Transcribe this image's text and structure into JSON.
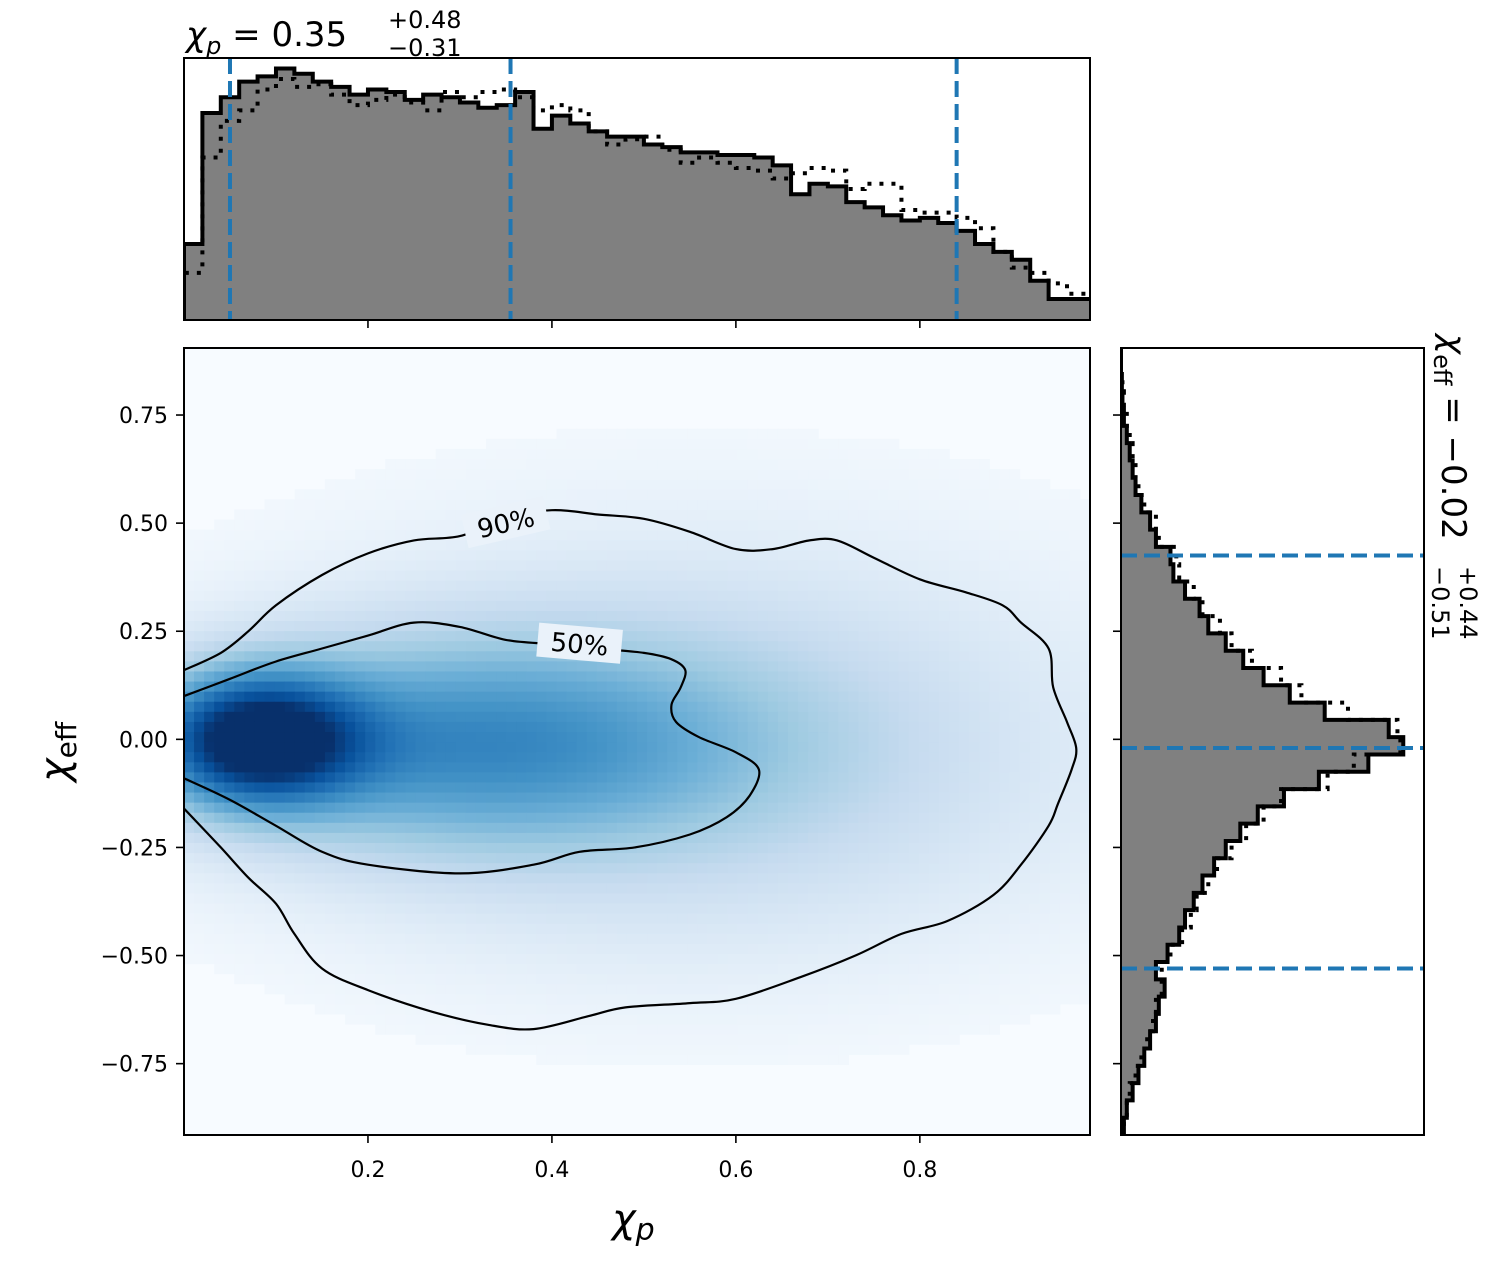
{
  "chart_data": [
    {
      "type": "heatmap",
      "panel": "joint",
      "xlabel": "χp",
      "ylabel": "χeff",
      "xlim": [
        0.0,
        0.985
      ],
      "ylim": [
        -0.915,
        0.905
      ],
      "xticks": [
        "0.2",
        "0.4",
        "0.6",
        "0.8"
      ],
      "xtick_values": [
        0.2,
        0.4,
        0.6,
        0.8
      ],
      "yticks": [
        "0.75",
        "0.50",
        "0.25",
        "0.00",
        "−0.25",
        "−0.50",
        "−0.75"
      ],
      "ytick_values": [
        0.75,
        0.5,
        0.25,
        0.0,
        -0.25,
        -0.5,
        -0.75
      ],
      "density_peak": {
        "x": 0.08,
        "y": 0.0
      },
      "colormap": [
        "#f7fbff",
        "#deebf7",
        "#c6dbef",
        "#9ecae1",
        "#6baed6",
        "#4292c6",
        "#2171b5",
        "#08519c",
        "#08306b"
      ],
      "contours": [
        {
          "label": "50%",
          "points": [
            [
              0.0,
              0.1
            ],
            [
              0.05,
              0.14
            ],
            [
              0.1,
              0.18
            ],
            [
              0.15,
              0.21
            ],
            [
              0.2,
              0.24
            ],
            [
              0.25,
              0.27
            ],
            [
              0.3,
              0.26
            ],
            [
              0.35,
              0.23
            ],
            [
              0.4,
              0.22
            ],
            [
              0.45,
              0.21
            ],
            [
              0.5,
              0.2
            ],
            [
              0.53,
              0.185
            ],
            [
              0.545,
              0.16
            ],
            [
              0.54,
              0.12
            ],
            [
              0.53,
              0.08
            ],
            [
              0.535,
              0.04
            ],
            [
              0.56,
              0.005
            ],
            [
              0.6,
              -0.03
            ],
            [
              0.625,
              -0.07
            ],
            [
              0.615,
              -0.13
            ],
            [
              0.59,
              -0.18
            ],
            [
              0.55,
              -0.22
            ],
            [
              0.49,
              -0.25
            ],
            [
              0.43,
              -0.26
            ],
            [
              0.38,
              -0.29
            ],
            [
              0.3,
              -0.31
            ],
            [
              0.2,
              -0.29
            ],
            [
              0.15,
              -0.26
            ],
            [
              0.1,
              -0.2
            ],
            [
              0.05,
              -0.14
            ],
            [
              0.0,
              -0.09
            ]
          ]
        },
        {
          "label": "90%",
          "points": [
            [
              0.0,
              0.16
            ],
            [
              0.04,
              0.2
            ],
            [
              0.07,
              0.25
            ],
            [
              0.1,
              0.31
            ],
            [
              0.15,
              0.38
            ],
            [
              0.2,
              0.43
            ],
            [
              0.25,
              0.46
            ],
            [
              0.3,
              0.47
            ],
            [
              0.35,
              0.51
            ],
            [
              0.4,
              0.53
            ],
            [
              0.45,
              0.52
            ],
            [
              0.5,
              0.51
            ],
            [
              0.55,
              0.48
            ],
            [
              0.6,
              0.44
            ],
            [
              0.64,
              0.44
            ],
            [
              0.68,
              0.46
            ],
            [
              0.71,
              0.46
            ],
            [
              0.75,
              0.42
            ],
            [
              0.8,
              0.37
            ],
            [
              0.85,
              0.34
            ],
            [
              0.89,
              0.31
            ],
            [
              0.91,
              0.27
            ],
            [
              0.94,
              0.21
            ],
            [
              0.945,
              0.12
            ],
            [
              0.96,
              0.04
            ],
            [
              0.97,
              -0.02
            ],
            [
              0.965,
              -0.07
            ],
            [
              0.95,
              -0.15
            ],
            [
              0.94,
              -0.2
            ],
            [
              0.91,
              -0.29
            ],
            [
              0.88,
              -0.36
            ],
            [
              0.83,
              -0.42
            ],
            [
              0.78,
              -0.45
            ],
            [
              0.73,
              -0.5
            ],
            [
              0.67,
              -0.55
            ],
            [
              0.6,
              -0.6
            ],
            [
              0.55,
              -0.61
            ],
            [
              0.48,
              -0.62
            ],
            [
              0.44,
              -0.64
            ],
            [
              0.38,
              -0.67
            ],
            [
              0.33,
              -0.66
            ],
            [
              0.27,
              -0.63
            ],
            [
              0.2,
              -0.58
            ],
            [
              0.15,
              -0.53
            ],
            [
              0.12,
              -0.45
            ],
            [
              0.1,
              -0.38
            ],
            [
              0.07,
              -0.32
            ],
            [
              0.04,
              -0.25
            ],
            [
              0.0,
              -0.16
            ]
          ]
        }
      ]
    },
    {
      "type": "bar",
      "panel": "top-marginal",
      "variable": "χp",
      "xlim": [
        0.0,
        0.985
      ],
      "ymax": 1.0,
      "quantile_lines_x": [
        0.05,
        0.355,
        0.84
      ],
      "bin_edges": [
        0.0,
        0.02,
        0.04,
        0.06,
        0.08,
        0.1,
        0.12,
        0.14,
        0.16,
        0.18,
        0.2,
        0.22,
        0.24,
        0.26,
        0.28,
        0.3,
        0.32,
        0.34,
        0.36,
        0.38,
        0.4,
        0.42,
        0.44,
        0.46,
        0.48,
        0.5,
        0.52,
        0.54,
        0.56,
        0.58,
        0.6,
        0.62,
        0.64,
        0.66,
        0.68,
        0.7,
        0.72,
        0.74,
        0.76,
        0.78,
        0.8,
        0.82,
        0.84,
        0.86,
        0.88,
        0.9,
        0.92,
        0.94,
        0.96,
        0.985
      ],
      "series": [
        {
          "style": "filled",
          "values": [
            0.29,
            0.79,
            0.85,
            0.91,
            0.93,
            0.96,
            0.94,
            0.91,
            0.89,
            0.86,
            0.88,
            0.87,
            0.84,
            0.86,
            0.85,
            0.83,
            0.81,
            0.82,
            0.87,
            0.73,
            0.78,
            0.75,
            0.72,
            0.7,
            0.7,
            0.67,
            0.66,
            0.64,
            0.64,
            0.63,
            0.63,
            0.62,
            0.59,
            0.48,
            0.52,
            0.51,
            0.45,
            0.43,
            0.4,
            0.38,
            0.39,
            0.37,
            0.34,
            0.29,
            0.26,
            0.23,
            0.15,
            0.08,
            0.08
          ]
        },
        {
          "style": "dotted",
          "values": [
            0.18,
            0.62,
            0.76,
            0.8,
            0.88,
            0.92,
            0.89,
            0.9,
            0.86,
            0.82,
            0.84,
            0.86,
            0.83,
            0.8,
            0.87,
            0.85,
            0.87,
            0.88,
            0.85,
            0.8,
            0.82,
            0.8,
            0.72,
            0.67,
            0.69,
            0.7,
            0.65,
            0.6,
            0.62,
            0.6,
            0.58,
            0.57,
            0.54,
            0.56,
            0.58,
            0.57,
            0.5,
            0.52,
            0.52,
            0.42,
            0.41,
            0.41,
            0.39,
            0.35,
            0.26,
            0.2,
            0.18,
            0.14,
            0.1
          ]
        }
      ]
    },
    {
      "type": "bar",
      "panel": "right-marginal",
      "orientation": "horizontal",
      "variable": "χeff",
      "ylim": [
        -0.915,
        0.905
      ],
      "xmax": 1.0,
      "quantile_lines_y": [
        0.425,
        -0.02,
        -0.53
      ],
      "bin_edges": [
        -0.915,
        -0.875,
        -0.835,
        -0.795,
        -0.755,
        -0.715,
        -0.675,
        -0.635,
        -0.595,
        -0.555,
        -0.515,
        -0.475,
        -0.435,
        -0.395,
        -0.355,
        -0.315,
        -0.275,
        -0.235,
        -0.195,
        -0.155,
        -0.115,
        -0.075,
        -0.035,
        0.005,
        0.045,
        0.085,
        0.125,
        0.165,
        0.205,
        0.245,
        0.285,
        0.325,
        0.365,
        0.405,
        0.445,
        0.485,
        0.525,
        0.565,
        0.605,
        0.645,
        0.685,
        0.725,
        0.765,
        0.805,
        0.845,
        0.905
      ],
      "series": [
        {
          "style": "filled",
          "values": [
            0.01,
            0.02,
            0.04,
            0.06,
            0.08,
            0.1,
            0.12,
            0.13,
            0.15,
            0.12,
            0.16,
            0.2,
            0.22,
            0.25,
            0.28,
            0.32,
            0.36,
            0.41,
            0.47,
            0.56,
            0.68,
            0.85,
            0.97,
            0.92,
            0.7,
            0.58,
            0.49,
            0.42,
            0.36,
            0.3,
            0.27,
            0.22,
            0.18,
            0.17,
            0.12,
            0.1,
            0.07,
            0.05,
            0.04,
            0.03,
            0.02,
            0.01,
            0.005,
            0.003,
            0.0
          ]
        },
        {
          "style": "dotted",
          "values": [
            0.01,
            0.02,
            0.03,
            0.05,
            0.07,
            0.09,
            0.11,
            0.12,
            0.14,
            0.14,
            0.17,
            0.21,
            0.24,
            0.26,
            0.3,
            0.33,
            0.38,
            0.43,
            0.49,
            0.55,
            0.71,
            0.8,
            0.96,
            0.95,
            0.78,
            0.62,
            0.55,
            0.45,
            0.38,
            0.34,
            0.28,
            0.25,
            0.2,
            0.19,
            0.13,
            0.12,
            0.08,
            0.06,
            0.05,
            0.04,
            0.03,
            0.02,
            0.01,
            0.005,
            0.0
          ]
        }
      ]
    }
  ],
  "annotations": {
    "top_title": {
      "symbol": "χ",
      "sub": "p",
      "equals": " = 0.35",
      "sup": "+0.48",
      "low": "−0.31"
    },
    "right_title": {
      "symbol": "χ",
      "sub": "eff",
      "equals": " = −0.02",
      "sup": "+0.44",
      "low": "−0.51"
    }
  },
  "colors": {
    "quantile_line": "#1f77b4",
    "hist_fill": "#808080",
    "hist_edge": "#000000",
    "contour": "#000000"
  }
}
